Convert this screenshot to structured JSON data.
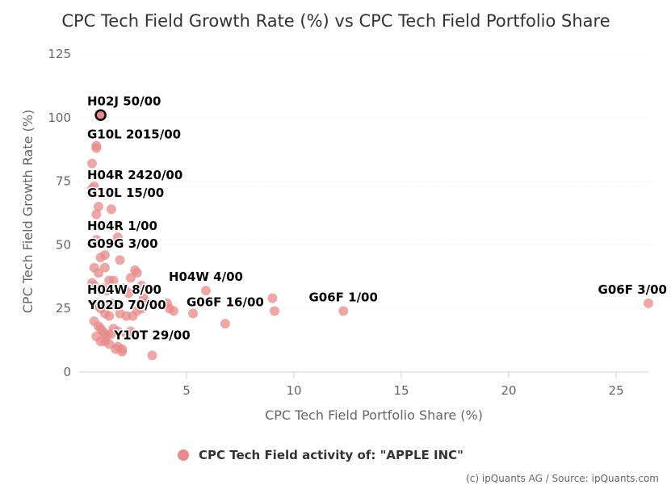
{
  "chart_data": {
    "type": "scatter",
    "title": "CPC Tech Field Growth Rate (%) vs CPC Tech Field Portfolio Share",
    "xlabel": "CPC Tech Field Portfolio Share (%)",
    "ylabel": "CPC Tech Field Growth Rate (%)",
    "xlim": [
      0,
      26.5
    ],
    "ylim": [
      0,
      125
    ],
    "x_ticks": [
      "5",
      "10",
      "15",
      "20",
      "25"
    ],
    "y_ticks": [
      "0",
      "25",
      "50",
      "75",
      "100",
      "125"
    ],
    "grid": "horizontal",
    "legend": "bottom",
    "series": [
      {
        "name": "CPC Tech Field activity of: \"APPLE INC\"",
        "color": "#e88a8a",
        "points": [
          [
            0.6,
            82
          ],
          [
            0.6,
            72
          ],
          [
            0.7,
            73
          ],
          [
            0.8,
            89
          ],
          [
            0.8,
            88
          ],
          [
            0.9,
            65
          ],
          [
            0.8,
            62
          ],
          [
            0.8,
            52
          ],
          [
            1.5,
            64
          ],
          [
            1.8,
            53
          ],
          [
            1.8,
            51
          ],
          [
            0.7,
            41
          ],
          [
            0.6,
            35
          ],
          [
            0.7,
            34
          ],
          [
            0.9,
            39
          ],
          [
            1.0,
            45
          ],
          [
            1.2,
            46
          ],
          [
            1.2,
            41
          ],
          [
            1.4,
            36
          ],
          [
            1.6,
            36
          ],
          [
            1.1,
            33
          ],
          [
            1.3,
            32
          ],
          [
            1.9,
            44
          ],
          [
            2.1,
            33
          ],
          [
            2.3,
            31
          ],
          [
            2.4,
            37
          ],
          [
            2.6,
            40
          ],
          [
            2.7,
            39
          ],
          [
            2.9,
            34
          ],
          [
            3.0,
            29
          ],
          [
            2.9,
            25
          ],
          [
            3.1,
            27
          ],
          [
            0.8,
            27
          ],
          [
            0.9,
            26
          ],
          [
            1.0,
            25
          ],
          [
            1.2,
            23
          ],
          [
            1.4,
            22
          ],
          [
            1.5,
            27
          ],
          [
            1.7,
            26
          ],
          [
            1.9,
            23
          ],
          [
            2.2,
            22
          ],
          [
            2.5,
            22
          ],
          [
            2.7,
            24
          ],
          [
            0.7,
            20
          ],
          [
            0.9,
            18
          ],
          [
            1.0,
            17
          ],
          [
            1.1,
            16
          ],
          [
            1.2,
            15
          ],
          [
            1.3,
            14
          ],
          [
            1.5,
            15
          ],
          [
            1.6,
            17
          ],
          [
            1.8,
            16
          ],
          [
            0.8,
            14
          ],
          [
            1.0,
            12
          ],
          [
            1.2,
            12
          ],
          [
            1.4,
            11
          ],
          [
            1.7,
            9
          ],
          [
            1.8,
            10
          ],
          [
            2.0,
            9
          ],
          [
            2.2,
            15
          ],
          [
            2.4,
            16
          ],
          [
            2.0,
            8
          ],
          [
            3.4,
            6.5
          ],
          [
            4.1,
            27
          ],
          [
            4.2,
            25
          ],
          [
            4.4,
            24
          ],
          [
            5.3,
            23
          ],
          [
            5.9,
            32
          ],
          [
            6.8,
            19
          ],
          [
            9.0,
            29
          ],
          [
            9.1,
            24
          ],
          [
            12.3,
            24
          ],
          [
            26.5,
            27
          ]
        ],
        "highlight": [
          1.0,
          101
        ]
      }
    ],
    "data_labels": [
      {
        "text": "H02J 50/00",
        "x": 1.0,
        "y": 101
      },
      {
        "text": "G10L 2015/00",
        "x": 0.8,
        "y": 88
      },
      {
        "text": "H04R 2420/00",
        "x": 0.6,
        "y": 72
      },
      {
        "text": "G10L 15/00",
        "x": 0.7,
        "y": 65
      },
      {
        "text": "H04R 1/00",
        "x": 0.8,
        "y": 52
      },
      {
        "text": "G09G 3/00",
        "x": 1.9,
        "y": 45
      },
      {
        "text": "H04W 4/00",
        "x": 5.9,
        "y": 32
      },
      {
        "text": "H04W 8/00",
        "x": 1.2,
        "y": 27
      },
      {
        "text": "G06F 1/00",
        "x": 12.3,
        "y": 24
      },
      {
        "text": "G06F 16/00",
        "x": 6.8,
        "y": 22
      },
      {
        "text": "Y02D 70/00",
        "x": 2.0,
        "y": 21
      },
      {
        "text": "Y10T 29/00",
        "x": 3.4,
        "y": 9
      },
      {
        "text": "G06F 3/00",
        "x": 26.5,
        "y": 27
      }
    ]
  },
  "credit": "(c) ipQuants AG / Source: ipQuants.com"
}
